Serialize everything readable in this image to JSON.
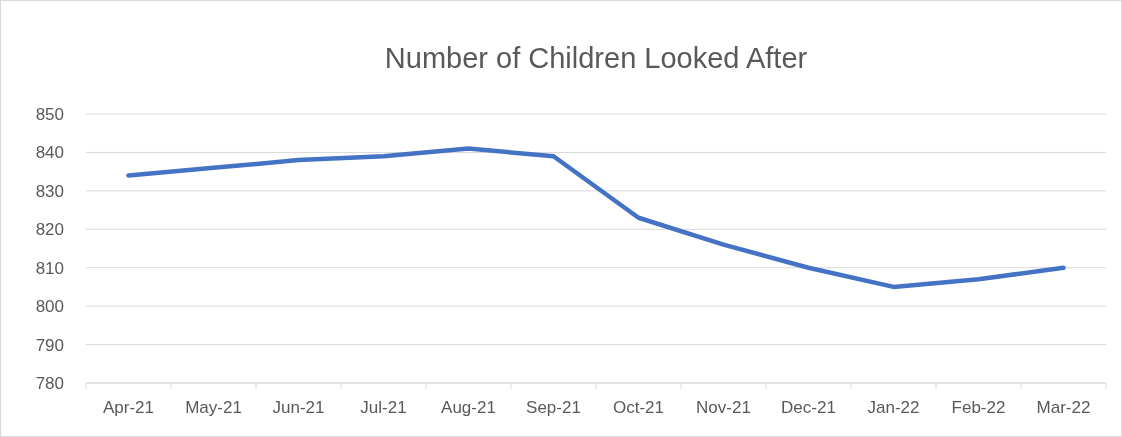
{
  "chart_data": {
    "type": "line",
    "title": "Number of Children Looked After",
    "categories": [
      "Apr-21",
      "May-21",
      "Jun-21",
      "Jul-21",
      "Aug-21",
      "Sep-21",
      "Oct-21",
      "Nov-21",
      "Dec-21",
      "Jan-22",
      "Feb-22",
      "Mar-22"
    ],
    "series": [
      {
        "color": "#4472c4",
        "values": [
          834,
          836,
          838,
          839,
          841,
          839,
          823,
          816,
          810,
          805,
          807,
          810
        ]
      }
    ],
    "ylim": [
      780,
      850
    ],
    "yticks": [
      780,
      790,
      800,
      810,
      820,
      830,
      840,
      850
    ],
    "grid": "y",
    "marker": "none",
    "line_style": "solid"
  }
}
